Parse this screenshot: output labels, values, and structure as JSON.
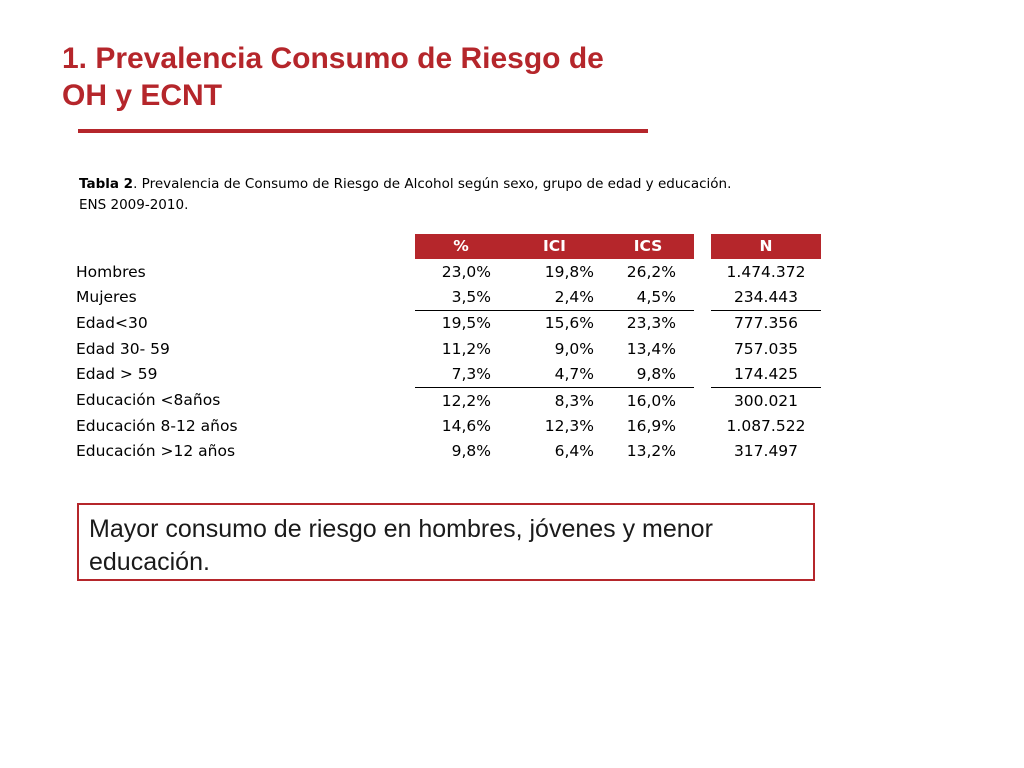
{
  "slide": {
    "title_line1": "1. Prevalencia Consumo de Riesgo de",
    "title_line2": "OH y ECNT"
  },
  "caption": {
    "bold": "Tabla 2",
    "text": ". Prevalencia de  Consumo de Riesgo de Alcohol según sexo, grupo de edad y educación.",
    "line2": "ENS 2009-2010."
  },
  "table": {
    "headers": {
      "pct": "%",
      "ici": "ICI",
      "ics": "ICS",
      "n": "N"
    },
    "rows": [
      {
        "label": "Hombres",
        "pct": "23,0%",
        "ici": "19,8%",
        "ics": "26,2%",
        "n": "1.474.372"
      },
      {
        "label": "Mujeres",
        "pct": "3,5%",
        "ici": "2,4%",
        "ics": "4,5%",
        "n": "234.443"
      },
      {
        "label": "Edad<30",
        "pct": "19,5%",
        "ici": "15,6%",
        "ics": "23,3%",
        "n": "777.356"
      },
      {
        "label": "Edad 30- 59",
        "pct": "11,2%",
        "ici": "9,0%",
        "ics": "13,4%",
        "n": "757.035"
      },
      {
        "label": "Edad > 59",
        "pct": "7,3%",
        "ici": "4,7%",
        "ics": "9,8%",
        "n": "174.425"
      },
      {
        "label": "Educación <8años",
        "pct": "12,2%",
        "ici": "8,3%",
        "ics": "16,0%",
        "n": "300.021"
      },
      {
        "label": "Educación 8-12 años",
        "pct": "14,6%",
        "ici": "12,3%",
        "ics": "16,9%",
        "n": "1.087.522"
      },
      {
        "label": "Educación >12 años",
        "pct": "9,8%",
        "ici": "6,4%",
        "ics": "13,2%",
        "n": "317.497"
      }
    ]
  },
  "note": {
    "text": "Mayor consumo de riesgo en hombres, jóvenes y menor educación."
  },
  "colors": {
    "accent": "#b5262b"
  }
}
